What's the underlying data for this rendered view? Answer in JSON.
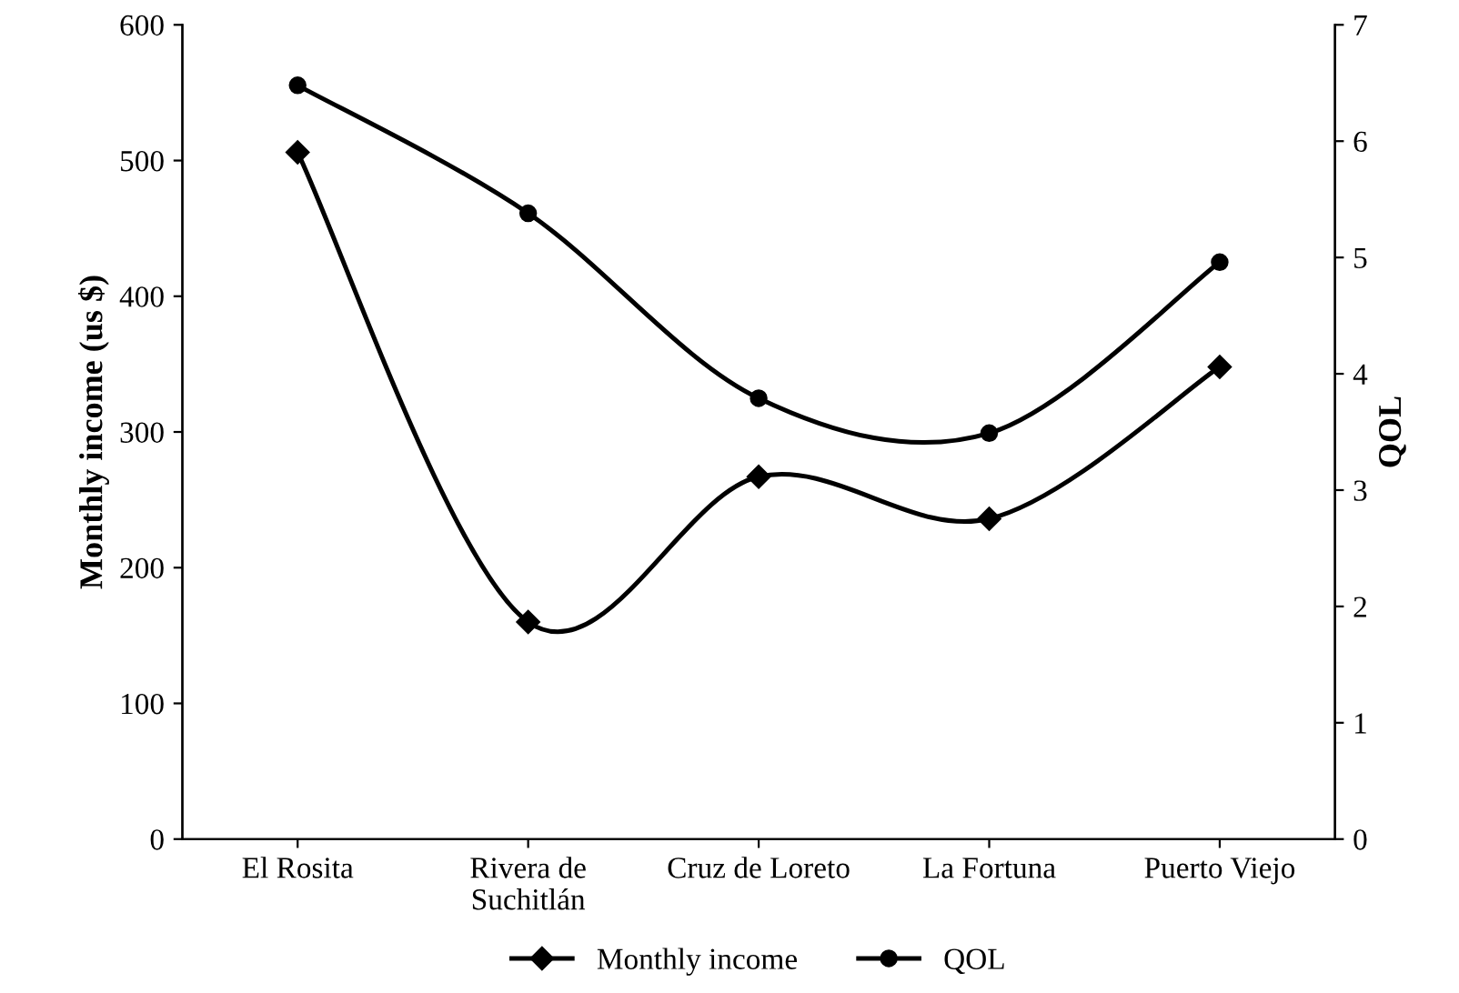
{
  "chart_data": {
    "type": "line",
    "categories": [
      "El Rosita",
      "Rivera de\nSuchitlán",
      "Cruz de Loreto",
      "La Fortuna",
      "Puerto Viejo"
    ],
    "ylabel": "Monthly income (us $)",
    "y2label": "QOL",
    "ylim": [
      0,
      600
    ],
    "yticks": [
      0,
      100,
      200,
      300,
      400,
      500,
      600
    ],
    "y2lim": [
      0,
      7
    ],
    "y2ticks": [
      0,
      1,
      2,
      3,
      4,
      5,
      6,
      7
    ],
    "series": [
      {
        "name": "Monthly income",
        "color": "#000000",
        "marker": "diamond",
        "values": [
          506,
          160,
          267,
          236,
          348
        ]
      },
      {
        "name": "QOL",
        "color": "#000000",
        "marker": "circle",
        "axis": "y2",
        "values": [
          6.48,
          5.38,
          3.79,
          3.49,
          4.96
        ]
      }
    ],
    "line_style": "solid",
    "grid": false,
    "legend": "bottom"
  }
}
